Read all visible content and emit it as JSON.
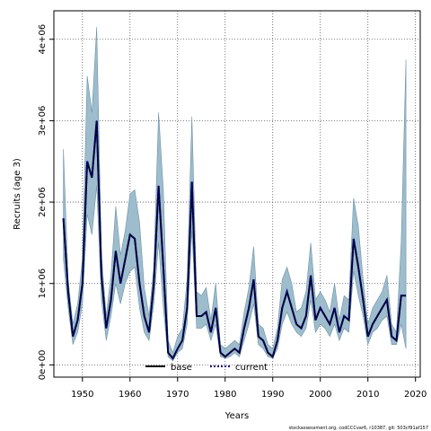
{
  "chart_data": {
    "type": "line",
    "title": "",
    "xlabel": "Years",
    "ylabel": "Recruits (age 3)",
    "xlim": [
      1944,
      2021
    ],
    "ylim": [
      -150000,
      4350000
    ],
    "xticks": [
      1950,
      1960,
      1970,
      1980,
      1990,
      2000,
      2010,
      2020
    ],
    "xtick_labels": [
      "1950",
      "1960",
      "1970",
      "1980",
      "1990",
      "2000",
      "2010",
      "2020"
    ],
    "yticks": [
      0,
      1000000,
      2000000,
      3000000,
      4000000
    ],
    "ytick_labels": [
      "0e+00",
      "1e+06",
      "2e+06",
      "3e+06",
      "4e+06"
    ],
    "grid": true,
    "legend_placement": "bottom-center",
    "colors": {
      "band": "#9dbccc",
      "band_edge": "#6a93a8",
      "base": "#000000",
      "current": "#00008b"
    },
    "legend": [
      {
        "label": "base",
        "style": "solid"
      },
      {
        "label": "current",
        "style": "dotted"
      }
    ],
    "footer": "stockassessment.org, codCCCvar6, r10387, git: 503cf91af157",
    "x": [
      1946,
      1947,
      1948,
      1949,
      1950,
      1951,
      1952,
      1953,
      1954,
      1955,
      1956,
      1957,
      1958,
      1959,
      1960,
      1961,
      1962,
      1963,
      1964,
      1965,
      1966,
      1967,
      1968,
      1969,
      1970,
      1971,
      1972,
      1973,
      1974,
      1975,
      1976,
      1977,
      1978,
      1979,
      1980,
      1981,
      1982,
      1983,
      1984,
      1985,
      1986,
      1987,
      1988,
      1989,
      1990,
      1991,
      1992,
      1993,
      1994,
      1995,
      1996,
      1997,
      1998,
      1999,
      2000,
      2001,
      2002,
      2003,
      2004,
      2005,
      2006,
      2007,
      2008,
      2009,
      2010,
      2011,
      2012,
      2013,
      2014,
      2015,
      2016,
      2017,
      2018
    ],
    "series": [
      {
        "name": "base",
        "role": "line",
        "values": [
          1800000,
          900000,
          350000,
          550000,
          1000000,
          2500000,
          2300000,
          3000000,
          1100000,
          450000,
          800000,
          1400000,
          1000000,
          1300000,
          1600000,
          1550000,
          1000000,
          600000,
          400000,
          1000000,
          2200000,
          1200000,
          150000,
          80000,
          200000,
          300000,
          700000,
          2250000,
          600000,
          600000,
          650000,
          400000,
          700000,
          150000,
          100000,
          150000,
          200000,
          150000,
          450000,
          700000,
          1050000,
          350000,
          300000,
          150000,
          100000,
          300000,
          700000,
          900000,
          700000,
          500000,
          450000,
          600000,
          1100000,
          550000,
          700000,
          600000,
          500000,
          700000,
          400000,
          600000,
          550000,
          1550000,
          1200000,
          800000,
          350000,
          500000,
          600000,
          700000,
          800000,
          350000,
          300000,
          850000,
          850000
        ]
      },
      {
        "name": "current",
        "role": "line",
        "values": [
          1800000,
          900000,
          350000,
          550000,
          1000000,
          2500000,
          2300000,
          3000000,
          1100000,
          450000,
          800000,
          1400000,
          1000000,
          1300000,
          1600000,
          1550000,
          1000000,
          600000,
          400000,
          1000000,
          2200000,
          1200000,
          150000,
          80000,
          200000,
          300000,
          700000,
          2250000,
          600000,
          600000,
          650000,
          400000,
          700000,
          150000,
          100000,
          150000,
          200000,
          150000,
          450000,
          700000,
          1050000,
          350000,
          300000,
          150000,
          100000,
          300000,
          700000,
          900000,
          700000,
          500000,
          450000,
          600000,
          1100000,
          550000,
          700000,
          600000,
          500000,
          700000,
          400000,
          600000,
          550000,
          1550000,
          1200000,
          800000,
          350000,
          500000,
          600000,
          700000,
          800000,
          350000,
          300000,
          850000,
          850000
        ]
      },
      {
        "name": "upper",
        "role": "band_upper",
        "values": [
          2650000,
          1050000,
          500000,
          750000,
          1300000,
          3550000,
          3100000,
          4150000,
          1350000,
          600000,
          1100000,
          1950000,
          1350000,
          1650000,
          2100000,
          2150000,
          1750000,
          950000,
          600000,
          1200000,
          3100000,
          2150000,
          300000,
          150000,
          350000,
          450000,
          1050000,
          3050000,
          900000,
          850000,
          950000,
          550000,
          1000000,
          250000,
          200000,
          250000,
          300000,
          250000,
          650000,
          950000,
          1450000,
          500000,
          450000,
          250000,
          200000,
          450000,
          1050000,
          1200000,
          1000000,
          650000,
          700000,
          900000,
          1500000,
          800000,
          900000,
          800000,
          650000,
          1000000,
          550000,
          850000,
          800000,
          2050000,
          1700000,
          1050000,
          500000,
          700000,
          800000,
          900000,
          1100000,
          500000,
          400000,
          1500000,
          3750000
        ]
      },
      {
        "name": "lower",
        "role": "band_lower",
        "values": [
          1300000,
          700000,
          250000,
          400000,
          750000,
          1850000,
          1600000,
          2200000,
          800000,
          300000,
          600000,
          1000000,
          750000,
          1000000,
          1150000,
          1200000,
          700000,
          400000,
          300000,
          750000,
          1500000,
          700000,
          100000,
          50000,
          150000,
          200000,
          500000,
          1650000,
          450000,
          450000,
          500000,
          300000,
          500000,
          100000,
          80000,
          100000,
          150000,
          100000,
          300000,
          500000,
          750000,
          250000,
          200000,
          100000,
          80000,
          200000,
          500000,
          650000,
          500000,
          400000,
          350000,
          450000,
          800000,
          400000,
          500000,
          450000,
          350000,
          500000,
          300000,
          450000,
          400000,
          1150000,
          850000,
          600000,
          250000,
          400000,
          450000,
          550000,
          600000,
          250000,
          250000,
          500000,
          200000
        ]
      }
    ]
  }
}
